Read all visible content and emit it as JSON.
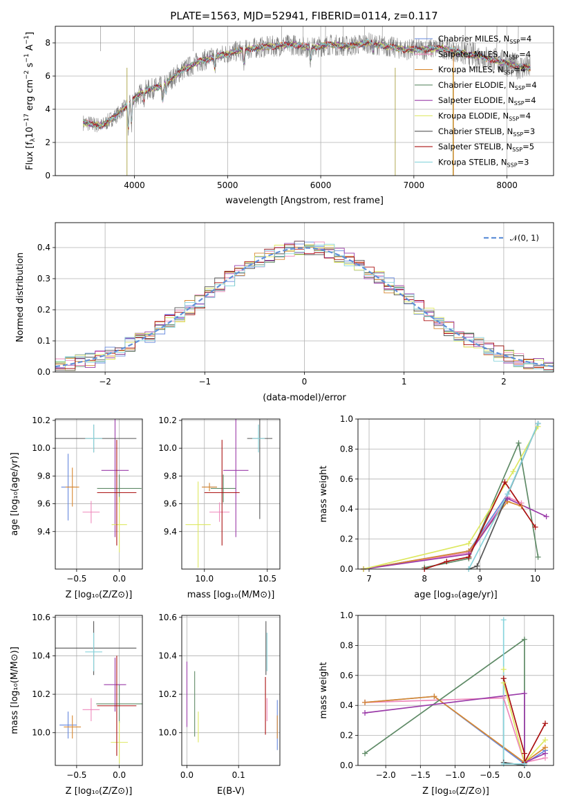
{
  "figure": {
    "title": "PLATE=1563, MJD=52941, FIBERID=0114, z=0.117"
  },
  "colors": {
    "chabrier_miles": "#6688dd",
    "salpeter_miles": "#ee88bb",
    "kroupa_miles": "#d88830",
    "chabrier_elodie": "#5e8a66",
    "salpeter_elodie": "#9a3aa8",
    "kroupa_elodie": "#dde860",
    "chabrier_stelib": "#555555",
    "salpeter_stelib": "#aa1111",
    "kroupa_stelib": "#88d4dc",
    "data": "#808080",
    "gaussian": "#6090d8"
  },
  "legend": [
    {
      "name": "Chabrier MILES, N_SSP=4",
      "color": "#6688dd"
    },
    {
      "name": "Salpeter MILES, N_SSP=4",
      "color": "#ee88bb"
    },
    {
      "name": "Kroupa MILES, N_SSP=4",
      "color": "#d88830"
    },
    {
      "name": "Chabrier ELODIE, N_SSP=4",
      "color": "#5e8a66"
    },
    {
      "name": "Salpeter ELODIE, N_SSP=4",
      "color": "#9a3aa8"
    },
    {
      "name": "Kroupa ELODIE, N_SSP=4",
      "color": "#dde860"
    },
    {
      "name": "Chabrier STELIB, N_SSP=3",
      "color": "#555555"
    },
    {
      "name": "Salpeter STELIB, N_SSP=5",
      "color": "#aa1111"
    },
    {
      "name": "Kroupa STELIB, N_SSP=3",
      "color": "#88d4dc"
    }
  ],
  "chart_data": [
    {
      "id": "spectrum",
      "type": "line",
      "xlabel": "wavelength [Angstrom, rest frame]",
      "ylabel": "Flux [f_λ 10^-17 erg cm^-2 s^-1 A^-1]",
      "xlim": [
        3150,
        8500
      ],
      "ylim": [
        0,
        9
      ],
      "xticks": [
        4000,
        5000,
        6000,
        7000,
        8000
      ],
      "yticks": [
        0,
        2,
        4,
        6,
        8
      ],
      "continuum": [
        [
          3450,
          3.2
        ],
        [
          3650,
          3.0
        ],
        [
          3800,
          3.6
        ],
        [
          3950,
          4.4
        ],
        [
          4100,
          5.1
        ],
        [
          4300,
          5.4
        ],
        [
          4500,
          6.3
        ],
        [
          4700,
          6.9
        ],
        [
          4900,
          7.2
        ],
        [
          5100,
          7.5
        ],
        [
          5300,
          7.7
        ],
        [
          5500,
          7.8
        ],
        [
          5700,
          7.9
        ],
        [
          5900,
          7.7
        ],
        [
          6100,
          7.9
        ],
        [
          6300,
          7.8
        ],
        [
          6500,
          8.0
        ],
        [
          6700,
          7.8
        ],
        [
          6900,
          7.6
        ],
        [
          7100,
          7.6
        ],
        [
          7300,
          7.7
        ],
        [
          7500,
          7.4
        ],
        [
          7700,
          7.2
        ],
        [
          7900,
          6.9
        ],
        [
          8100,
          6.6
        ],
        [
          8250,
          6.5
        ]
      ]
    },
    {
      "id": "residual_hist",
      "type": "bar",
      "xlabel": "(data-model)/error",
      "ylabel": "Normed distribution",
      "xlim": [
        -2.5,
        2.5
      ],
      "ylim": [
        0,
        0.48
      ],
      "xticks": [
        -2,
        -1,
        0,
        1,
        2
      ],
      "yticks": [
        0.0,
        0.1,
        0.2,
        0.3,
        0.4
      ],
      "bin_width": 0.1,
      "gaussian_label": "𝒩(0, 1)"
    },
    {
      "id": "age_vs_Z",
      "type": "scatter",
      "xlabel": "Z [log10(Z/Z⊙)]",
      "ylabel": "age  [log10(age/yr)]",
      "xlim": [
        -0.75,
        0.27
      ],
      "ylim": [
        9.13,
        10.21
      ],
      "xticks": [
        -0.5,
        0.0
      ],
      "yticks": [
        9.4,
        9.6,
        9.8,
        10.0,
        10.2
      ],
      "points": [
        {
          "series": "chabrier_miles",
          "x": -0.6,
          "y": 9.72,
          "xerr": 0.08,
          "yerr": 0.24
        },
        {
          "series": "salpeter_miles",
          "x": -0.33,
          "y": 9.54,
          "xerr": 0.1,
          "yerr": 0.08
        },
        {
          "series": "kroupa_miles",
          "x": -0.55,
          "y": 9.72,
          "xerr": 0.08,
          "yerr": 0.14
        },
        {
          "series": "chabrier_elodie",
          "x": 0.0,
          "y": 9.71,
          "xerr": 0.26,
          "yerr": 0.1
        },
        {
          "series": "salpeter_elodie",
          "x": -0.05,
          "y": 9.84,
          "xerr": 0.16,
          "yerr": 0.48
        },
        {
          "series": "kroupa_elodie",
          "x": 0.0,
          "y": 9.45,
          "xerr": 0.09,
          "yerr": 0.2
        },
        {
          "series": "chabrier_stelib",
          "x": -0.3,
          "y": 10.07,
          "xerr": 0.5,
          "yerr": 0.1
        },
        {
          "series": "salpeter_stelib",
          "x": -0.03,
          "y": 9.68,
          "xerr": 0.23,
          "yerr": 0.38
        },
        {
          "series": "kroupa_stelib",
          "x": -0.3,
          "y": 10.07,
          "xerr": 0.1,
          "yerr": 0.1
        }
      ]
    },
    {
      "id": "age_vs_mass",
      "type": "scatter",
      "xlabel": "mass [log10(M/M⊙)]",
      "ylabel": "",
      "xlim": [
        9.82,
        10.6
      ],
      "ylim": [
        9.13,
        10.21
      ],
      "xticks": [
        10.0,
        10.5
      ],
      "yticks": [
        9.4,
        9.6,
        9.8,
        10.0,
        10.2
      ],
      "points": [
        {
          "series": "chabrier_miles",
          "x": 10.04,
          "y": 9.72,
          "xerr": 0.06,
          "yerr": 0.03
        },
        {
          "series": "salpeter_miles",
          "x": 10.12,
          "y": 9.54,
          "xerr": 0.08,
          "yerr": 0.07
        },
        {
          "series": "kroupa_miles",
          "x": 10.04,
          "y": 9.72,
          "xerr": 0.06,
          "yerr": 0.03
        },
        {
          "series": "chabrier_elodie",
          "x": 10.15,
          "y": 9.71,
          "xerr": 0.1,
          "yerr": 0.1
        },
        {
          "series": "salpeter_elodie",
          "x": 10.25,
          "y": 9.84,
          "xerr": 0.1,
          "yerr": 0.48
        },
        {
          "series": "kroupa_elodie",
          "x": 9.95,
          "y": 9.45,
          "xerr": 0.1,
          "yerr": 0.31
        },
        {
          "series": "chabrier_stelib",
          "x": 10.44,
          "y": 10.07,
          "xerr": 0.1,
          "yerr": 0.58
        },
        {
          "series": "salpeter_stelib",
          "x": 10.14,
          "y": 9.68,
          "xerr": 0.14,
          "yerr": 0.38
        },
        {
          "series": "kroupa_stelib",
          "x": 10.43,
          "y": 10.07,
          "xerr": 0.05,
          "yerr": 0.1
        }
      ]
    },
    {
      "id": "massweight_vs_age",
      "type": "line",
      "xlabel": "age  [log10(age/yr)]",
      "ylabel": "mass weight",
      "xlim": [
        6.8,
        10.33
      ],
      "ylim": [
        0,
        1
      ],
      "xticks": [
        7,
        8,
        9,
        10
      ],
      "yticks": [
        0.0,
        0.2,
        0.4,
        0.6,
        0.8,
        1.0
      ],
      "series": [
        {
          "series": "chabrier_miles",
          "x": [
            6.9,
            8.8,
            9.5,
            10.05
          ],
          "y": [
            0.0,
            0.12,
            0.5,
            0.97
          ]
        },
        {
          "series": "salpeter_miles",
          "x": [
            6.9,
            8.8,
            9.5,
            9.75
          ],
          "y": [
            0.0,
            0.11,
            0.48,
            0.44
          ]
        },
        {
          "series": "kroupa_miles",
          "x": [
            6.9,
            8.8,
            9.5,
            9.75
          ],
          "y": [
            0.0,
            0.12,
            0.45,
            0.42
          ]
        },
        {
          "series": "chabrier_elodie",
          "x": [
            8.0,
            8.8,
            9.7,
            10.05
          ],
          "y": [
            0.01,
            0.07,
            0.84,
            0.08
          ]
        },
        {
          "series": "salpeter_elodie",
          "x": [
            6.9,
            8.8,
            9.5,
            10.2
          ],
          "y": [
            0.0,
            0.1,
            0.47,
            0.35
          ]
        },
        {
          "series": "kroupa_elodie",
          "x": [
            6.9,
            8.8,
            9.6,
            10.05
          ],
          "y": [
            0.0,
            0.17,
            0.65,
            0.95
          ]
        },
        {
          "series": "chabrier_stelib",
          "x": [
            8.8,
            8.95,
            10.05
          ],
          "y": [
            0.0,
            0.02,
            0.97
          ]
        },
        {
          "series": "salpeter_stelib",
          "x": [
            8.0,
            8.4,
            8.8,
            9.45,
            10.0
          ],
          "y": [
            0.0,
            0.05,
            0.08,
            0.58,
            0.28
          ]
        },
        {
          "series": "kroupa_stelib",
          "x": [
            8.8,
            9.5,
            10.05
          ],
          "y": [
            0.0,
            0.5,
            0.97
          ]
        }
      ]
    },
    {
      "id": "mass_vs_Z",
      "type": "scatter",
      "xlabel": "Z [log10(Z/Z⊙)]",
      "ylabel": "mass [log10(M/M⊙)]",
      "xlim": [
        -0.75,
        0.27
      ],
      "ylim": [
        9.83,
        10.61
      ],
      "xticks": [
        -0.5,
        0.0
      ],
      "yticks": [
        10.0,
        10.2,
        10.4,
        10.6
      ],
      "points": [
        {
          "series": "chabrier_miles",
          "x": -0.6,
          "y": 10.04,
          "xerr": 0.1,
          "yerr": 0.07
        },
        {
          "series": "salpeter_miles",
          "x": -0.33,
          "y": 10.12,
          "xerr": 0.1,
          "yerr": 0.06
        },
        {
          "series": "kroupa_miles",
          "x": -0.55,
          "y": 10.03,
          "xerr": 0.1,
          "yerr": 0.06
        },
        {
          "series": "chabrier_elodie",
          "x": 0.0,
          "y": 10.15,
          "xerr": 0.27,
          "yerr": 0.1
        },
        {
          "series": "salpeter_elodie",
          "x": -0.05,
          "y": 10.25,
          "xerr": 0.13,
          "yerr": 0.14
        },
        {
          "series": "kroupa_elodie",
          "x": 0.0,
          "y": 9.95,
          "xerr": 0.1,
          "yerr": 0.11
        },
        {
          "series": "chabrier_stelib",
          "x": -0.3,
          "y": 10.44,
          "xerr": 0.5,
          "yerr": 0.14
        },
        {
          "series": "salpeter_stelib",
          "x": -0.03,
          "y": 10.14,
          "xerr": 0.23,
          "yerr": 0.26
        },
        {
          "series": "kroupa_stelib",
          "x": -0.3,
          "y": 10.42,
          "xerr": 0.1,
          "yerr": 0.1
        }
      ]
    },
    {
      "id": "mass_vs_ebv",
      "type": "scatter",
      "xlabel": "E(B-V)",
      "ylabel": "",
      "xlim": [
        -0.01,
        0.18
      ],
      "ylim": [
        9.83,
        10.61
      ],
      "xticks": [
        0.0,
        0.1
      ],
      "yticks": [
        10.0,
        10.2,
        10.4,
        10.6
      ],
      "points": [
        {
          "series": "chabrier_miles",
          "x": 0.175,
          "y": 10.04,
          "xerr": 0,
          "yerr": 0.13
        },
        {
          "series": "salpeter_miles",
          "x": 0.155,
          "y": 10.12,
          "xerr": 0,
          "yerr": 0.06
        },
        {
          "series": "kroupa_miles",
          "x": 0.175,
          "y": 10.03,
          "xerr": 0,
          "yerr": 0.06
        },
        {
          "series": "chabrier_elodie",
          "x": 0.015,
          "y": 10.15,
          "xerr": 0,
          "yerr": 0.17
        },
        {
          "series": "salpeter_elodie",
          "x": 0.0,
          "y": 10.2,
          "xerr": 0,
          "yerr": 0.17
        },
        {
          "series": "kroupa_elodie",
          "x": 0.022,
          "y": 10.03,
          "xerr": 0,
          "yerr": 0.08
        },
        {
          "series": "chabrier_stelib",
          "x": 0.153,
          "y": 10.44,
          "xerr": 0,
          "yerr": 0.14
        },
        {
          "series": "salpeter_stelib",
          "x": 0.152,
          "y": 10.14,
          "xerr": 0,
          "yerr": 0.15
        },
        {
          "series": "kroupa_stelib",
          "x": 0.155,
          "y": 10.42,
          "xerr": 0,
          "yerr": 0.1
        }
      ]
    },
    {
      "id": "massweight_vs_Z",
      "type": "line",
      "xlabel": "Z [log10(Z/Z⊙)]",
      "ylabel": "mass weight",
      "xlim": [
        -2.4,
        0.42
      ],
      "ylim": [
        0,
        1
      ],
      "xticks": [
        -2.0,
        -1.5,
        -1.0,
        -0.5,
        0.0
      ],
      "yticks": [
        0.0,
        0.2,
        0.4,
        0.6,
        0.8,
        1.0
      ],
      "series": [
        {
          "series": "chabrier_miles",
          "x": [
            -2.3,
            -1.3,
            0.0,
            0.3
          ],
          "y": [
            0.42,
            0.46,
            0.01,
            0.1
          ]
        },
        {
          "series": "salpeter_miles",
          "x": [
            -2.3,
            -0.3,
            0.0,
            0.3
          ],
          "y": [
            0.42,
            0.45,
            0.02,
            0.05
          ]
        },
        {
          "series": "kroupa_miles",
          "x": [
            -2.3,
            -1.3,
            0.0,
            0.3
          ],
          "y": [
            0.42,
            0.46,
            0.02,
            0.12
          ]
        },
        {
          "series": "chabrier_elodie",
          "x": [
            -2.3,
            0.0,
            0.0
          ],
          "y": [
            0.08,
            0.84,
            0.02
          ]
        },
        {
          "series": "salpeter_elodie",
          "x": [
            -2.3,
            0.0,
            0.0,
            0.3
          ],
          "y": [
            0.35,
            0.48,
            0.02,
            0.08
          ]
        },
        {
          "series": "kroupa_elodie",
          "x": [
            -0.3,
            -0.3,
            0.0,
            0.3
          ],
          "y": [
            0.64,
            0.55,
            0.02,
            0.17
          ]
        },
        {
          "series": "chabrier_stelib",
          "x": [
            -0.3,
            -0.3,
            0.0
          ],
          "y": [
            0.58,
            0.02,
            0.0
          ]
        },
        {
          "series": "salpeter_stelib",
          "x": [
            -0.3,
            0.0,
            0.0,
            0.3
          ],
          "y": [
            0.58,
            0.08,
            0.02,
            0.28
          ]
        },
        {
          "series": "kroupa_stelib",
          "x": [
            -0.3,
            -0.3,
            0.0
          ],
          "y": [
            0.97,
            0.01,
            0.01
          ]
        }
      ]
    }
  ]
}
